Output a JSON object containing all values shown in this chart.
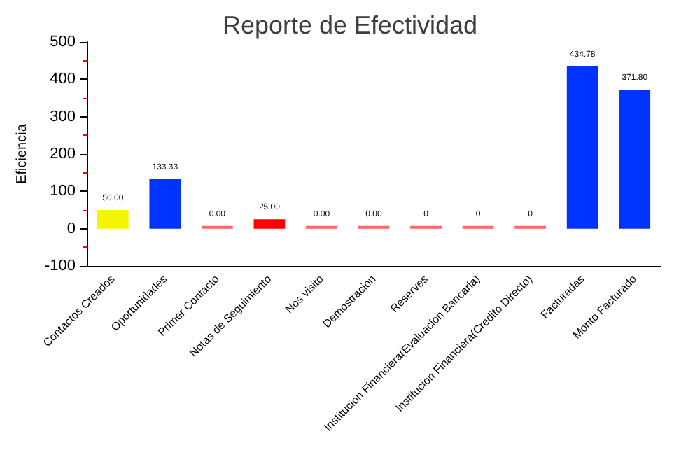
{
  "chart_data": {
    "type": "bar",
    "title": "Reporte de Efectividad",
    "ylabel": "Eficiencia",
    "categories": [
      "Contactos Creados",
      "Oportunidades",
      "Primer Contacto",
      "Notas de Seguimiento",
      "Nos visito",
      "Demostracion",
      "Reserves",
      "Institucion Financiera(Evaluacion Bancaria)",
      "Institucion Financiera(Credito Directo)",
      "Facturadas",
      "Monto Facturado"
    ],
    "values": [
      50,
      133.33,
      0,
      25,
      0,
      0,
      0,
      0,
      0,
      434.78,
      371.8
    ],
    "value_labels": [
      "50.00",
      "133.33",
      "0.00",
      "25.00",
      "0.00",
      "0.00",
      "0",
      "0",
      "0",
      "434.78",
      "371.80"
    ],
    "colors": [
      "#f5f500",
      "#0033ff",
      "#ff6666",
      "#ff0000",
      "#ff6666",
      "#ff6666",
      "#ff6666",
      "#ff6666",
      "#ff6666",
      "#0033ff",
      "#0033ff"
    ],
    "ylim": [
      -100,
      500
    ],
    "yticks": [
      -100,
      0,
      100,
      200,
      300,
      400,
      500
    ],
    "grid": false
  }
}
